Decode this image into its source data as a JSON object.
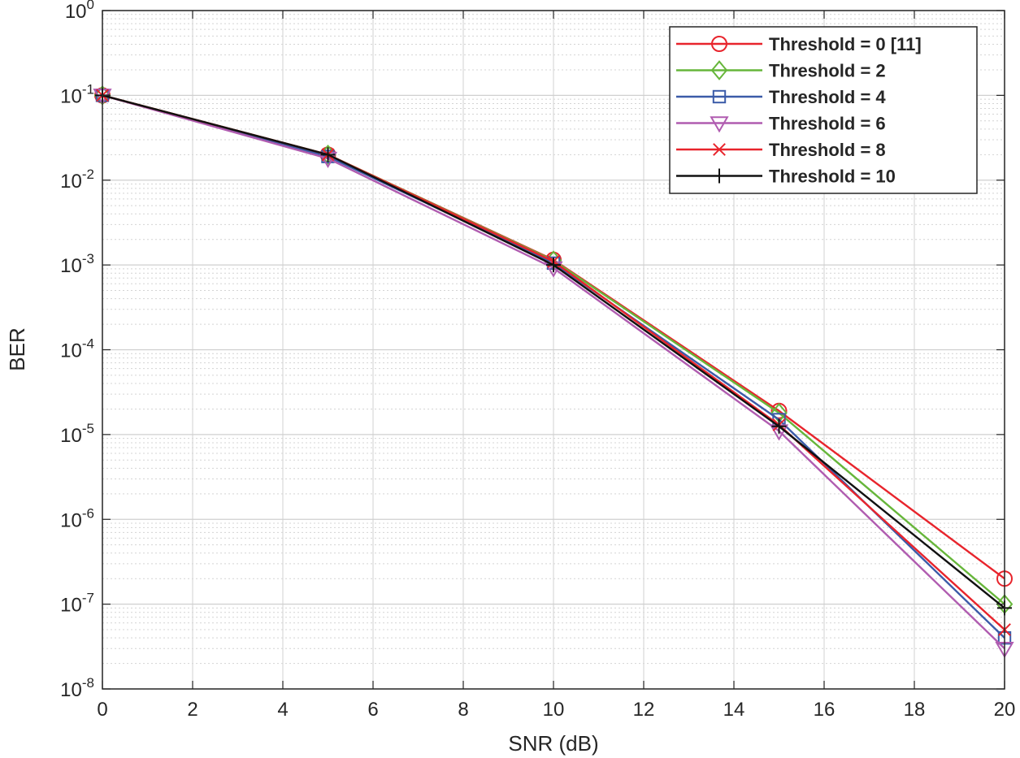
{
  "chart_data": {
    "type": "line",
    "title": "",
    "xlabel": "SNR (dB)",
    "ylabel": "BER",
    "x": [
      0,
      5,
      10,
      15,
      20
    ],
    "xlim": [
      0,
      20
    ],
    "ylim": [
      1e-08,
      1
    ],
    "yscale": "log",
    "x_ticks": [
      "0",
      "2",
      "4",
      "6",
      "8",
      "10",
      "12",
      "14",
      "16",
      "18",
      "20"
    ],
    "y_tick_base": "10",
    "y_tick_exponents": [
      "-8",
      "-7",
      "-6",
      "-5",
      "-4",
      "-3",
      "-2",
      "-1",
      "0"
    ],
    "grid": true,
    "legend_position": "top-right",
    "series": [
      {
        "name": "Threshold = 0 [11]",
        "color": "#e8242c",
        "marker": "circle",
        "values": [
          0.1,
          0.02,
          0.00115,
          1.9e-05,
          2e-07
        ]
      },
      {
        "name": "Threshold = 2",
        "color": "#66b63a",
        "marker": "diamond",
        "values": [
          0.1,
          0.02,
          0.00113,
          1.8e-05,
          1e-07
        ]
      },
      {
        "name": "Threshold = 4",
        "color": "#3b5ba8",
        "marker": "square",
        "values": [
          0.1,
          0.019,
          0.00105,
          1.5e-05,
          4e-08
        ]
      },
      {
        "name": "Threshold = 6",
        "color": "#b05cb0",
        "marker": "triangle-down",
        "values": [
          0.1,
          0.018,
          0.00092,
          1.1e-05,
          3e-08
        ]
      },
      {
        "name": "Threshold = 8",
        "color": "#e8242c",
        "marker": "x",
        "values": [
          0.1,
          0.02,
          0.0011,
          1.3e-05,
          5e-08
        ]
      },
      {
        "name": "Threshold = 10",
        "color": "#111111",
        "marker": "plus",
        "values": [
          0.1,
          0.02,
          0.001,
          1.25e-05,
          9e-08
        ]
      }
    ]
  }
}
